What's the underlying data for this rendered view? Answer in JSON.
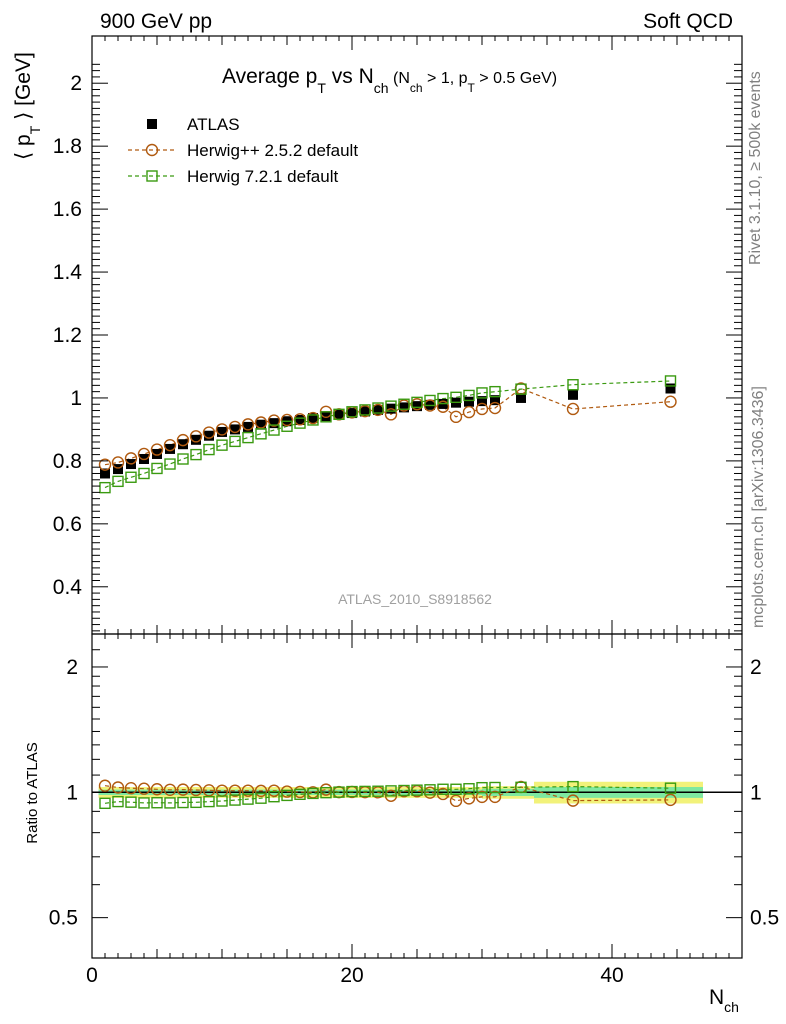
{
  "header": {
    "left": "900 GeV pp",
    "right": "Soft QCD"
  },
  "side_labels": {
    "rivet": "Rivet 3.1.10, ≥ 500k events",
    "mcplots": "mcplots.cern.ch [arXiv:1306.3436]"
  },
  "watermark": "ATLAS_2010_S8918562",
  "colors": {
    "atlas": "#000000",
    "herwigpp": "#b05a10",
    "herwig7": "#3a9a10",
    "band_inner": "#7ee8a0",
    "band_outer": "#f2f27a"
  },
  "chart_data": [
    {
      "type": "scatter",
      "title": {
        "main": "Average p",
        "main_sub": "T",
        "vs": " vs N",
        "vs_sub": "ch",
        "cond_open": " (N",
        "cond_sub1": "ch",
        "cond_mid": " > 1, p",
        "cond_sub2": "T",
        "cond_close": " > 0.5 GeV)"
      },
      "ylabel": "⟨ p",
      "ylabel_sub": "T",
      "ylabel_close": " ⟩  [GeV]",
      "xlim": [
        0,
        50
      ],
      "ylim": [
        0.25,
        2.15
      ],
      "yticks": [
        0.4,
        0.6,
        0.8,
        1,
        1.2,
        1.4,
        1.6,
        1.8,
        2
      ],
      "ytick_labels": [
        "0.4",
        "0.6",
        "0.8",
        "1",
        "1.2",
        "1.4",
        "1.6",
        "1.8",
        "2"
      ],
      "legend_position": "top-left",
      "series": [
        {
          "name": "ATLAS",
          "marker": "filled-square",
          "x": [
            1,
            2,
            3,
            4,
            5,
            6,
            7,
            8,
            9,
            10,
            11,
            12,
            13,
            14,
            15,
            16,
            17,
            18,
            19,
            20,
            21,
            22,
            23,
            24,
            25,
            26,
            27,
            28,
            29,
            30,
            31,
            33,
            37,
            44.5
          ],
          "y": [
            0.76,
            0.774,
            0.79,
            0.806,
            0.822,
            0.838,
            0.853,
            0.867,
            0.88,
            0.892,
            0.9,
            0.908,
            0.915,
            0.92,
            0.926,
            0.93,
            0.936,
            0.942,
            0.947,
            0.952,
            0.957,
            0.962,
            0.966,
            0.97,
            0.974,
            0.978,
            0.981,
            0.985,
            0.988,
            0.99,
            0.993,
            1.0,
            1.01,
            1.03
          ]
        },
        {
          "name": "Herwig++ 2.5.2 default",
          "marker": "open-circle",
          "x": [
            1,
            2,
            3,
            4,
            5,
            6,
            7,
            8,
            9,
            10,
            11,
            12,
            13,
            14,
            15,
            16,
            17,
            18,
            19,
            20,
            21,
            22,
            23,
            24,
            25,
            26,
            27,
            28,
            29,
            30,
            31,
            33,
            37,
            44.5
          ],
          "y": [
            0.788,
            0.795,
            0.808,
            0.822,
            0.836,
            0.85,
            0.866,
            0.878,
            0.89,
            0.9,
            0.908,
            0.916,
            0.922,
            0.928,
            0.93,
            0.932,
            0.936,
            0.956,
            0.948,
            0.954,
            0.958,
            0.962,
            0.948,
            0.976,
            0.98,
            0.976,
            0.972,
            0.94,
            0.955,
            0.965,
            0.968,
            1.03,
            0.965,
            0.988
          ]
        },
        {
          "name": "Herwig 7.2.1 default",
          "marker": "open-square",
          "x": [
            1,
            2,
            3,
            4,
            5,
            6,
            7,
            8,
            9,
            10,
            11,
            12,
            13,
            14,
            15,
            16,
            17,
            18,
            19,
            20,
            21,
            22,
            23,
            24,
            25,
            26,
            27,
            28,
            29,
            30,
            31,
            33,
            37,
            44.5
          ],
          "y": [
            0.715,
            0.735,
            0.748,
            0.76,
            0.776,
            0.79,
            0.806,
            0.82,
            0.836,
            0.85,
            0.862,
            0.874,
            0.886,
            0.898,
            0.91,
            0.92,
            0.93,
            0.94,
            0.948,
            0.956,
            0.962,
            0.968,
            0.974,
            0.98,
            0.986,
            0.992,
            0.998,
            1.002,
            1.008,
            1.016,
            1.02,
            1.028,
            1.042,
            1.054
          ]
        }
      ]
    },
    {
      "type": "scatter",
      "ylabel": "Ratio to ATLAS",
      "xlabel": "N",
      "xlabel_sub": "ch",
      "xlim": [
        0,
        50
      ],
      "ylim": [
        0.4,
        2.4
      ],
      "log_scale_y": true,
      "yticks": [
        0.5,
        1,
        2
      ],
      "ytick_labels": [
        "0.5",
        "1",
        "2"
      ],
      "xticks": [
        0,
        20,
        40
      ],
      "xtick_labels": [
        "0",
        "20",
        "40"
      ],
      "series": [
        {
          "name": "Herwig++ 2.5.2 default",
          "marker": "open-circle",
          "x": [
            1,
            2,
            3,
            4,
            5,
            6,
            7,
            8,
            9,
            10,
            11,
            12,
            13,
            14,
            15,
            16,
            17,
            18,
            19,
            20,
            21,
            22,
            23,
            24,
            25,
            26,
            27,
            28,
            29,
            30,
            31,
            33,
            37,
            44.5
          ],
          "y": [
            1.037,
            1.027,
            1.023,
            1.02,
            1.017,
            1.014,
            1.015,
            1.013,
            1.011,
            1.009,
            1.009,
            1.009,
            1.008,
            1.009,
            1.004,
            1.002,
            1.0,
            1.015,
            1.001,
            1.002,
            1.001,
            1.0,
            0.981,
            1.006,
            1.006,
            0.998,
            0.991,
            0.954,
            0.967,
            0.975,
            0.975,
            1.03,
            0.955,
            0.959
          ]
        },
        {
          "name": "Herwig 7.2.1 default",
          "marker": "open-square",
          "x": [
            1,
            2,
            3,
            4,
            5,
            6,
            7,
            8,
            9,
            10,
            11,
            12,
            13,
            14,
            15,
            16,
            17,
            18,
            19,
            20,
            21,
            22,
            23,
            24,
            25,
            26,
            27,
            28,
            29,
            30,
            31,
            33,
            37,
            44.5
          ],
          "y": [
            0.941,
            0.95,
            0.947,
            0.943,
            0.944,
            0.943,
            0.945,
            0.946,
            0.95,
            0.953,
            0.958,
            0.963,
            0.968,
            0.976,
            0.983,
            0.989,
            0.994,
            0.998,
            1.001,
            1.004,
            1.005,
            1.006,
            1.008,
            1.01,
            1.012,
            1.014,
            1.017,
            1.017,
            1.02,
            1.026,
            1.027,
            1.028,
            1.032,
            1.023
          ]
        }
      ]
    }
  ]
}
